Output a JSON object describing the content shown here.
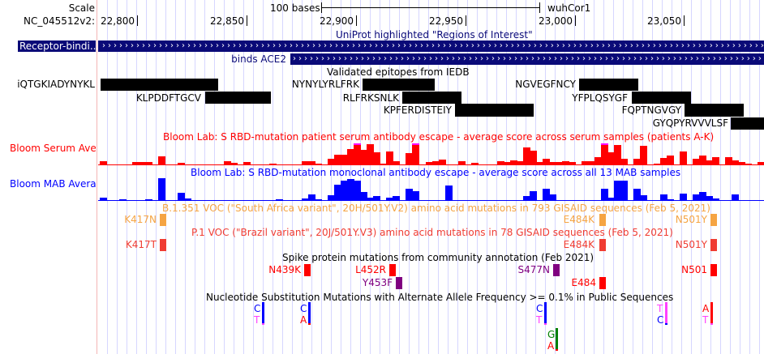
{
  "ruler": {
    "scale_label": "Scale",
    "scale_text": "100 bases",
    "assembly": "wuhCor1",
    "chrom_label": "NC_045512v2:",
    "ticks": [
      "22,800",
      "22,850",
      "22,900",
      "22,950",
      "23,000",
      "23,050"
    ]
  },
  "uniprot": {
    "title": "UniProt highlighted \"Regions of Interest\"",
    "features": [
      {
        "label": "Receptor-bindi...",
        "color": "#0a0a78"
      },
      {
        "label": "binds ACE2",
        "color": "#0a0a78"
      }
    ]
  },
  "iedb": {
    "title": "Validated epitopes from IEDB",
    "epitopes": [
      "iQTGKIADYNYKL",
      "NYNYLYRLFRK",
      "NGVEGFNCY",
      "KLPDDFTGCV",
      "RLFRKSNLK",
      "YFPLQSYGF",
      "KPFERDISTEIY",
      "FQPTNGVGY",
      "GYQPYRVVVLSF"
    ]
  },
  "bloom_serum": {
    "label": "Bloom Serum Ave",
    "title": "Bloom Lab: S RBD-mutation patient serum antibody escape - average score across serum samples (patients A-K)",
    "color": "#ff0000",
    "clip_color": "#ff00ff",
    "values": [
      0.15,
      0,
      0,
      0,
      0,
      0.12,
      0.1,
      0.12,
      0,
      0.37,
      0,
      0,
      0.09,
      0,
      0,
      0,
      0,
      0,
      0,
      0.15,
      0.08,
      0,
      0.12,
      0,
      0,
      0,
      0.04,
      0,
      0,
      0,
      0,
      0.15,
      0.15,
      0.05,
      0,
      0.28,
      0.45,
      0.45,
      0.72,
      1.0,
      0.7,
      0.98,
      0.57,
      0.05,
      0.62,
      0.15,
      0,
      0.55,
      1.0,
      0,
      0.12,
      0.15,
      0.22,
      0,
      0,
      0.15,
      0,
      0.08,
      0,
      0,
      0,
      0.15,
      0.1,
      0.18,
      0.15,
      0.8,
      0.67,
      0.1,
      0.27,
      0.12,
      0.12,
      0.15,
      0.12,
      0,
      0.15,
      0.15,
      0.35,
      1.0,
      0.58,
      0.92,
      0.25,
      0,
      0.25,
      0.88,
      0,
      0.05,
      0.32,
      0.42,
      0,
      0.62,
      0,
      0.28,
      0.42,
      0.2,
      0.35,
      0,
      0.35,
      0.2,
      0.1,
      0.05,
      0,
      0.1
    ],
    "clipped": [
      39,
      48,
      77
    ]
  },
  "bloom_mab": {
    "label": "Bloom MAB Avera",
    "title": "Bloom Lab: S RBD-mutation monoclonal antibody escape - average score across all 13 MAB samples",
    "color": "#0000ff",
    "values": [
      0.12,
      0,
      0,
      0.04,
      0,
      0,
      0,
      0.04,
      0,
      1.0,
      0,
      0,
      0.34,
      0.08,
      0,
      0,
      0,
      0,
      0,
      0,
      0,
      0,
      0,
      0,
      0,
      0,
      0,
      0.04,
      0,
      0,
      0,
      0.08,
      0.27,
      0.05,
      0,
      0.22,
      0.7,
      0.9,
      0.95,
      0.9,
      0.38,
      0.12,
      0.2,
      0,
      0.12,
      0.18,
      0,
      0.5,
      0.42,
      0,
      0,
      0,
      0,
      0.65,
      0,
      0,
      0,
      0,
      0,
      0,
      0,
      0,
      0,
      0,
      0,
      0.2,
      0.4,
      0,
      0.53,
      0.27,
      0,
      0,
      0,
      0,
      0,
      0,
      0,
      0.5,
      0.12,
      0.88,
      0.9,
      0,
      0.53,
      0.22,
      0,
      0,
      0.27,
      0.04,
      0,
      0.3,
      0,
      0.27,
      0.36,
      0.2,
      0.08,
      0,
      0,
      0.25,
      0,
      0,
      0,
      0
    ]
  },
  "b1351": {
    "title": "B.1.351 VOC (\"South Africa variant\", 20H/501Y.V2) amino acid mutations in 793 GISAID sequences (Feb 5, 2021)",
    "color": "#f5a443",
    "mutations": [
      "K417N",
      "E484K",
      "N501Y"
    ]
  },
  "p1": {
    "title": "P.1 VOC (\"Brazil variant\", 20J/501Y.V3) amino acid mutations in 78 GISAID sequences (Feb 5, 2021)",
    "color": "#f03c32",
    "mutations": [
      "K417T",
      "E484K",
      "N501Y"
    ]
  },
  "spike": {
    "title": "Spike protein mutations from community annotation (Feb 2021)",
    "mutations": [
      {
        "label": "N439K",
        "color": "#ff0000"
      },
      {
        "label": "L452R",
        "color": "#ff0000"
      },
      {
        "label": "S477N",
        "color": "#800080"
      },
      {
        "label": "N501",
        "color": "#ff0000"
      },
      {
        "label": "Y453F",
        "color": "#800080"
      },
      {
        "label": "E484",
        "color": "#ff0000"
      }
    ]
  },
  "nucleotide": {
    "title": "Nucleotide Substitution Mutations with Alternate Allele Frequency >= 0.1% in Public Sequences",
    "base_colors": {
      "A": "#ff0000",
      "C": "#0000ff",
      "G": "#008000",
      "T": "#ff40ff"
    },
    "variants": [
      {
        "ref": "C",
        "alt": "T"
      },
      {
        "ref": "C",
        "alt": "A"
      },
      {
        "ref": "C",
        "alt": "T"
      },
      {
        "ref": "T",
        "alt": "C"
      },
      {
        "ref": "A",
        "alt": "T"
      },
      {
        "ref": "G",
        "alt": "A"
      }
    ]
  }
}
